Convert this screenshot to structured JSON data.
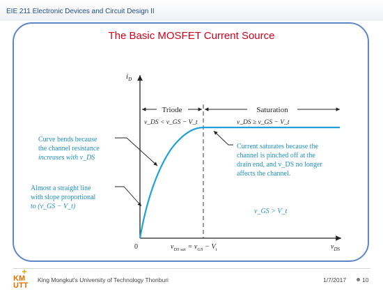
{
  "course": "EIE 211 Electronic Devices and Circuit Design II",
  "title": "The Basic MOSFET Current Source",
  "diagram": {
    "y_axis_label": "i",
    "y_axis_sub": "D",
    "origin_label": "0",
    "x_axis_label": "v",
    "x_axis_sub": "DS",
    "vdssat_label": "v",
    "vdssat_sub": "DS sat",
    "vdssat_rhs": "= v",
    "vdssat_gs_sub": "GS",
    "vdssat_minus": "− V",
    "vdssat_t_sub": "t",
    "triode_label": "Triode",
    "saturation_label": "Saturation",
    "triode_cond": "v_DS < v_GS − V_t",
    "saturation_cond": "v_DS ≥ v_GS − V_t",
    "note_bends": [
      "Curve bends because",
      "the channel resistance",
      "increases with v_DS"
    ],
    "note_straight": [
      "Almost a straight line",
      "with slope proportional",
      "to (v_GS − V_t)"
    ],
    "note_saturates": [
      "Current saturates because the",
      "channel is pinched off at the",
      "drain end, and v_DS no longer",
      "affects the channel."
    ],
    "vgs_condition": "v_GS > V_t",
    "curve_color": "#1fa0d8"
  },
  "footer": {
    "logo_text": "KMUTT",
    "institution": "King Mongkut's University of Technology Thonburi",
    "date": "1/7/2017",
    "page": "10"
  }
}
